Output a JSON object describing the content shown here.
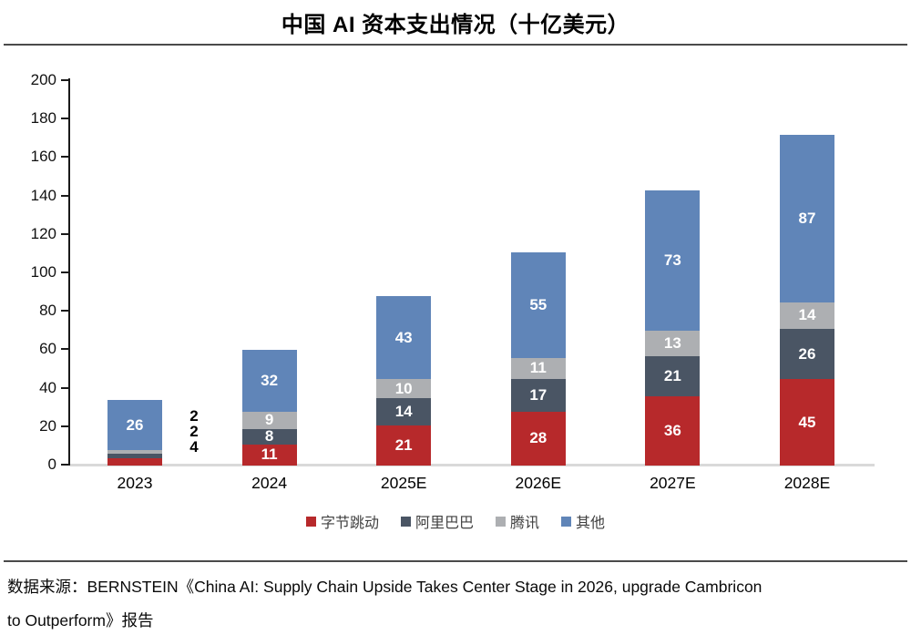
{
  "title": "中国 AI 资本支出情况（十亿美元）",
  "source": {
    "lines": [
      "数据来源：BERNSTEIN《China AI: Supply Chain Upside Takes Center Stage in 2026, upgrade Cambricon",
      "to Outperform》报告"
    ]
  },
  "chart_data": {
    "type": "bar",
    "stacked": true,
    "title": "中国 AI 资本支出情况（十亿美元）",
    "categories": [
      "2023",
      "2024",
      "2025E",
      "2026E",
      "2027E",
      "2028E"
    ],
    "series": [
      {
        "name": "字节跳动",
        "color": "#B7292B",
        "values": [
          4,
          11,
          21,
          28,
          36,
          45
        ]
      },
      {
        "name": "阿里巴巴",
        "color": "#4A5564",
        "values": [
          2,
          8,
          14,
          17,
          21,
          26
        ]
      },
      {
        "name": "腾讯",
        "color": "#ADAFB2",
        "values": [
          2,
          9,
          10,
          11,
          13,
          14
        ]
      },
      {
        "name": "其他",
        "color": "#6085B8",
        "values": [
          26,
          32,
          43,
          55,
          73,
          87
        ]
      }
    ],
    "totals": [
      34,
      60,
      88,
      111,
      143,
      172
    ],
    "ylim": [
      0,
      200
    ],
    "ytick_step": 20,
    "ytick_labels": [
      "0",
      "20",
      "40",
      "60",
      "80",
      "100",
      "120",
      "140",
      "160",
      "180",
      "200"
    ],
    "grid": false,
    "legend_position": "bottom",
    "inside_label_color": "#FFFFFF",
    "outside_labels": {
      "category": "2023",
      "labels_top_to_bottom": [
        "2",
        "2",
        "4"
      ]
    },
    "colors": {
      "axis": "#1a1a1a",
      "baseline": "#d9d9d9",
      "divider": "#4a4a4a"
    }
  }
}
